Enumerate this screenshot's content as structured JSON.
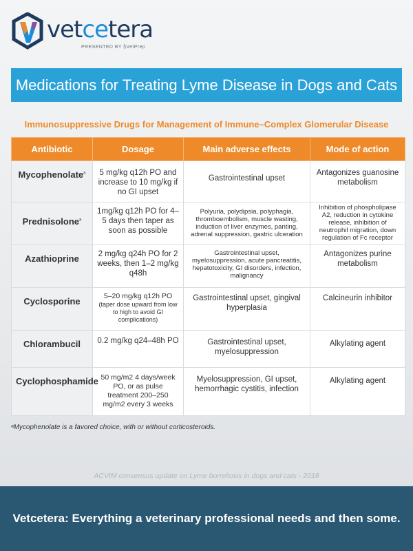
{
  "brand": {
    "name_part1": "vet",
    "name_part2": "ce",
    "name_part3": "tera",
    "presented_by": "PRESENTED BY §VetPrep",
    "colors": {
      "navy": "#1e3a5f",
      "blue": "#1c8cd8",
      "orange": "#ee8a2a",
      "purple": "#8a4fa3"
    }
  },
  "title": "Medications for Treating Lyme Disease in Dogs and Cats",
  "subtitle": "Immunosuppressive Drugs for Management of Immune–Complex Glomerular Disease",
  "table": {
    "headers": [
      "Antibiotic",
      "Dosage",
      "Main adverse effects",
      "Mode of action"
    ],
    "rows": [
      {
        "drug": "Mycophenolate",
        "sup": "a",
        "dosage": "5 mg/kg q12h PO and increase to 10 mg/kg if no GI upset",
        "effects": "Gastrointestinal upset",
        "mode": "Antagonizes guanosine metabolism"
      },
      {
        "drug": "Prednisolone",
        "sup": "a",
        "dosage": "1mg/kg q12h PO for 4–5 days then taper as soon as possible",
        "effects": "Polyuria, polydipsia, polyphagia, thromboembolism, muscle wasting, induction of liver enzymes, panting, adrenal suppression, gastric ulceration",
        "mode": "Inhibition of phospholipase A2, reduction in cytokine release, inhibition of neutrophil migration, down regulation of Fc receptor"
      },
      {
        "drug": "Azathioprine",
        "sup": "",
        "dosage": "2 mg/kg q24h PO for 2 weeks, then 1–2 mg/kg q48h",
        "effects": "Gastrointestinal upset, myelosuppression, acute pancreatitis, hepatotoxicity, GI disorders, infection, malignancy",
        "mode": "Antagonizes purine metabolism"
      },
      {
        "drug": "Cyclosporine",
        "sup": "",
        "dosage_main": "5–20 mg/kg q12h PO",
        "dosage_note": "(taper dose upward from low to high to avoid GI complications)",
        "effects": "Gastrointestinal upset, gingival hyperplasia",
        "mode": "Calcineurin inhibitor"
      },
      {
        "drug": "Chlorambucil",
        "sup": "",
        "dosage": "0.2 mg/kg q24–48h PO",
        "effects": "Gastrointestinal upset, myelosuppression",
        "mode": "Alkylating agent"
      },
      {
        "drug": "Cyclophosphamide",
        "sup": "",
        "dosage": "50 mg/m2 4 days/week PO, or as pulse treatment 200–250 mg/m2 every 3 weeks",
        "effects": "Myelosuppression, GI upset, hemorrhagic cystitis, infection",
        "mode": "Alkylating agent"
      }
    ]
  },
  "footnote": "ᵃMycophenolate is a favored choice, with or without corticosteroids.",
  "source": "ACVIM consensus update on Lyme borreliosis in dogs and cats - 2018",
  "footer": "Vetcetera: Everything a veterinary professional needs and then some."
}
